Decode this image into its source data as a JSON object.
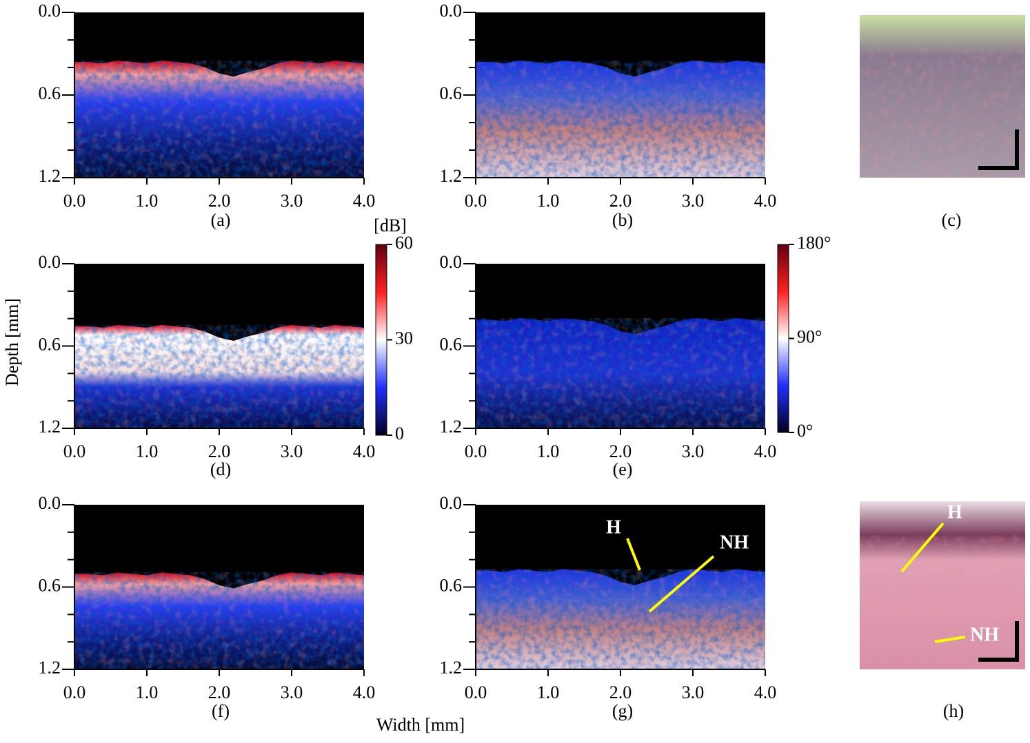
{
  "axes": {
    "x_label": "Width [mm]",
    "y_label": "Depth [mm]",
    "x_ticks": [
      "0.0",
      "1.0",
      "2.0",
      "3.0",
      "4.0"
    ],
    "y_ticks": [
      "0.0",
      "0.6",
      "1.2"
    ]
  },
  "panels": [
    {
      "label": "(a)"
    },
    {
      "label": "(b)"
    },
    {
      "label": "(c)"
    },
    {
      "label": "(d)"
    },
    {
      "label": "(e)"
    },
    {
      "label": "(f)"
    },
    {
      "label": "(g)",
      "annotations": [
        "H",
        "NH"
      ]
    },
    {
      "label": "(h)",
      "annotations": [
        "H",
        "NH"
      ]
    }
  ],
  "colorbars": [
    {
      "unit": "[dB]",
      "ticks": [
        "60",
        "30",
        "0"
      ]
    },
    {
      "ticks": [
        "180°",
        "90°",
        "0°"
      ]
    }
  ]
}
